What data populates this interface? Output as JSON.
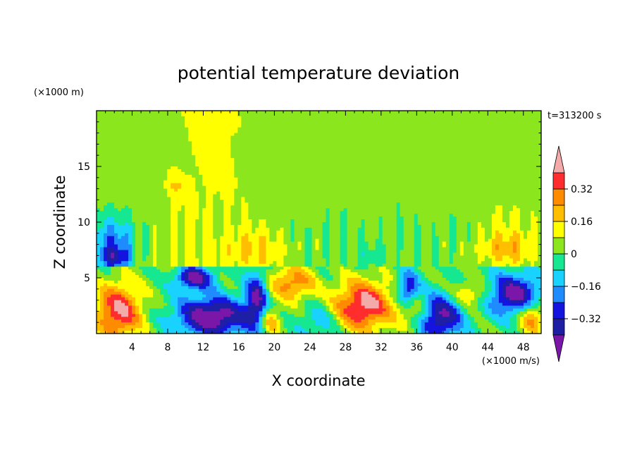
{
  "chart_data": {
    "type": "heatmap",
    "title": "potential temperature deviation",
    "xlabel": "X coordinate",
    "ylabel": "Z coordinate",
    "x_unit": "(×1000 m/s)",
    "y_unit": "(×1000 m)",
    "time_label": "t=313200 s",
    "xlim": [
      0,
      50
    ],
    "ylim": [
      0,
      20
    ],
    "x_ticks": [
      4,
      8,
      12,
      16,
      20,
      24,
      28,
      32,
      36,
      40,
      44,
      48
    ],
    "y_ticks": [
      5,
      10,
      15
    ],
    "colorbar": {
      "levels": [
        -0.4,
        -0.32,
        -0.24,
        -0.16,
        -0.08,
        0,
        0.08,
        0.16,
        0.24,
        0.32,
        0.4
      ],
      "labeled_levels": [
        0.32,
        0.16,
        0,
        -0.16,
        -0.32
      ],
      "labels": [
        "0.32",
        "0.16",
        "0",
        "−0.16",
        "−0.32"
      ],
      "colors": [
        "#7a17a8",
        "#1f1fa6",
        "#1414e0",
        "#1e8cff",
        "#19d2ff",
        "#16e892",
        "#8ce61e",
        "#ffff00",
        "#ffbe00",
        "#ff8c00",
        "#ff2d2d",
        "#f5aaaa"
      ],
      "extend": "both"
    },
    "field_description_regions": [
      {
        "x": [
          0,
          50
        ],
        "z": [
          6.2,
          20
        ],
        "value": 0.02
      },
      {
        "x": [
          0,
          22
        ],
        "z": [
          6.2,
          20
        ],
        "value": 0.1
      },
      {
        "x": [
          0,
          5
        ],
        "z": [
          6.2,
          11
        ],
        "value": -0.2
      },
      {
        "x": [
          0,
          4
        ],
        "z": [
          6.2,
          8
        ],
        "value": -0.35
      },
      {
        "x": [
          14,
          24
        ],
        "z": [
          6.2,
          10
        ],
        "value": 0.2
      },
      {
        "x": [
          41,
          50
        ],
        "z": [
          6.2,
          11
        ],
        "value": 0.12
      },
      {
        "x": [
          43,
          49
        ],
        "z": [
          6.2,
          8.5
        ],
        "value": 0.28
      },
      {
        "x": [
          8,
          16
        ],
        "z": [
          0,
          6
        ],
        "value": -0.38
      },
      {
        "x": [
          36,
          42
        ],
        "z": [
          0,
          6
        ],
        "value": -0.38
      },
      {
        "x": [
          44,
          50
        ],
        "z": [
          0,
          6
        ],
        "value": -0.38
      },
      {
        "x": [
          0,
          6
        ],
        "z": [
          0,
          6
        ],
        "value": 0.3
      },
      {
        "x": [
          26,
          34
        ],
        "z": [
          0,
          6
        ],
        "value": 0.3
      },
      {
        "x": [
          18,
          24
        ],
        "z": [
          0,
          6
        ],
        "value": -0.2
      }
    ]
  }
}
